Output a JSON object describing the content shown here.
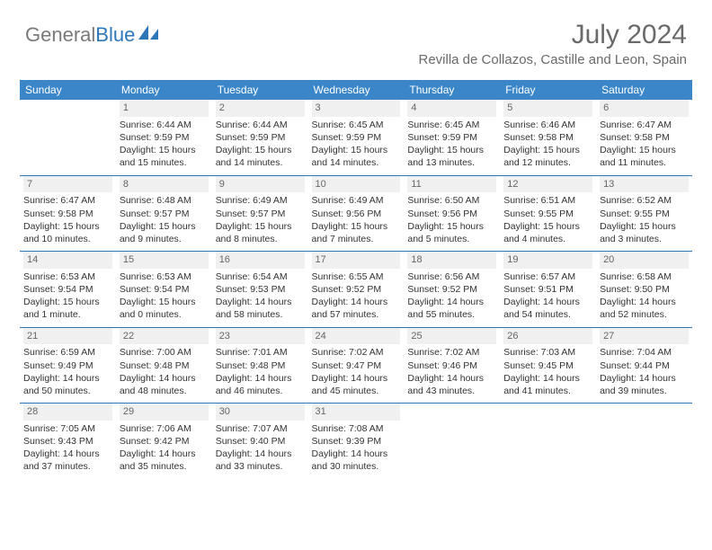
{
  "logo": {
    "part1": "General",
    "part2": "Blue"
  },
  "title": "July 2024",
  "location": "Revilla de Collazos, Castille and Leon, Spain",
  "colors": {
    "header_bg": "#3a86c8",
    "accent": "#2d77b8",
    "daynum_bg": "#f0f0f0",
    "text_muted": "#6a6a6a"
  },
  "dayNames": [
    "Sunday",
    "Monday",
    "Tuesday",
    "Wednesday",
    "Thursday",
    "Friday",
    "Saturday"
  ],
  "weeks": [
    [
      null,
      {
        "d": "1",
        "sr": "6:44 AM",
        "ss": "9:59 PM",
        "dl": "15 hours and 15 minutes."
      },
      {
        "d": "2",
        "sr": "6:44 AM",
        "ss": "9:59 PM",
        "dl": "15 hours and 14 minutes."
      },
      {
        "d": "3",
        "sr": "6:45 AM",
        "ss": "9:59 PM",
        "dl": "15 hours and 14 minutes."
      },
      {
        "d": "4",
        "sr": "6:45 AM",
        "ss": "9:59 PM",
        "dl": "15 hours and 13 minutes."
      },
      {
        "d": "5",
        "sr": "6:46 AM",
        "ss": "9:58 PM",
        "dl": "15 hours and 12 minutes."
      },
      {
        "d": "6",
        "sr": "6:47 AM",
        "ss": "9:58 PM",
        "dl": "15 hours and 11 minutes."
      }
    ],
    [
      {
        "d": "7",
        "sr": "6:47 AM",
        "ss": "9:58 PM",
        "dl": "15 hours and 10 minutes."
      },
      {
        "d": "8",
        "sr": "6:48 AM",
        "ss": "9:57 PM",
        "dl": "15 hours and 9 minutes."
      },
      {
        "d": "9",
        "sr": "6:49 AM",
        "ss": "9:57 PM",
        "dl": "15 hours and 8 minutes."
      },
      {
        "d": "10",
        "sr": "6:49 AM",
        "ss": "9:56 PM",
        "dl": "15 hours and 7 minutes."
      },
      {
        "d": "11",
        "sr": "6:50 AM",
        "ss": "9:56 PM",
        "dl": "15 hours and 5 minutes."
      },
      {
        "d": "12",
        "sr": "6:51 AM",
        "ss": "9:55 PM",
        "dl": "15 hours and 4 minutes."
      },
      {
        "d": "13",
        "sr": "6:52 AM",
        "ss": "9:55 PM",
        "dl": "15 hours and 3 minutes."
      }
    ],
    [
      {
        "d": "14",
        "sr": "6:53 AM",
        "ss": "9:54 PM",
        "dl": "15 hours and 1 minute."
      },
      {
        "d": "15",
        "sr": "6:53 AM",
        "ss": "9:54 PM",
        "dl": "15 hours and 0 minutes."
      },
      {
        "d": "16",
        "sr": "6:54 AM",
        "ss": "9:53 PM",
        "dl": "14 hours and 58 minutes."
      },
      {
        "d": "17",
        "sr": "6:55 AM",
        "ss": "9:52 PM",
        "dl": "14 hours and 57 minutes."
      },
      {
        "d": "18",
        "sr": "6:56 AM",
        "ss": "9:52 PM",
        "dl": "14 hours and 55 minutes."
      },
      {
        "d": "19",
        "sr": "6:57 AM",
        "ss": "9:51 PM",
        "dl": "14 hours and 54 minutes."
      },
      {
        "d": "20",
        "sr": "6:58 AM",
        "ss": "9:50 PM",
        "dl": "14 hours and 52 minutes."
      }
    ],
    [
      {
        "d": "21",
        "sr": "6:59 AM",
        "ss": "9:49 PM",
        "dl": "14 hours and 50 minutes."
      },
      {
        "d": "22",
        "sr": "7:00 AM",
        "ss": "9:48 PM",
        "dl": "14 hours and 48 minutes."
      },
      {
        "d": "23",
        "sr": "7:01 AM",
        "ss": "9:48 PM",
        "dl": "14 hours and 46 minutes."
      },
      {
        "d": "24",
        "sr": "7:02 AM",
        "ss": "9:47 PM",
        "dl": "14 hours and 45 minutes."
      },
      {
        "d": "25",
        "sr": "7:02 AM",
        "ss": "9:46 PM",
        "dl": "14 hours and 43 minutes."
      },
      {
        "d": "26",
        "sr": "7:03 AM",
        "ss": "9:45 PM",
        "dl": "14 hours and 41 minutes."
      },
      {
        "d": "27",
        "sr": "7:04 AM",
        "ss": "9:44 PM",
        "dl": "14 hours and 39 minutes."
      }
    ],
    [
      {
        "d": "28",
        "sr": "7:05 AM",
        "ss": "9:43 PM",
        "dl": "14 hours and 37 minutes."
      },
      {
        "d": "29",
        "sr": "7:06 AM",
        "ss": "9:42 PM",
        "dl": "14 hours and 35 minutes."
      },
      {
        "d": "30",
        "sr": "7:07 AM",
        "ss": "9:40 PM",
        "dl": "14 hours and 33 minutes."
      },
      {
        "d": "31",
        "sr": "7:08 AM",
        "ss": "9:39 PM",
        "dl": "14 hours and 30 minutes."
      },
      null,
      null,
      null
    ]
  ],
  "labels": {
    "sunrise": "Sunrise: ",
    "sunset": "Sunset: ",
    "daylight": "Daylight: "
  }
}
